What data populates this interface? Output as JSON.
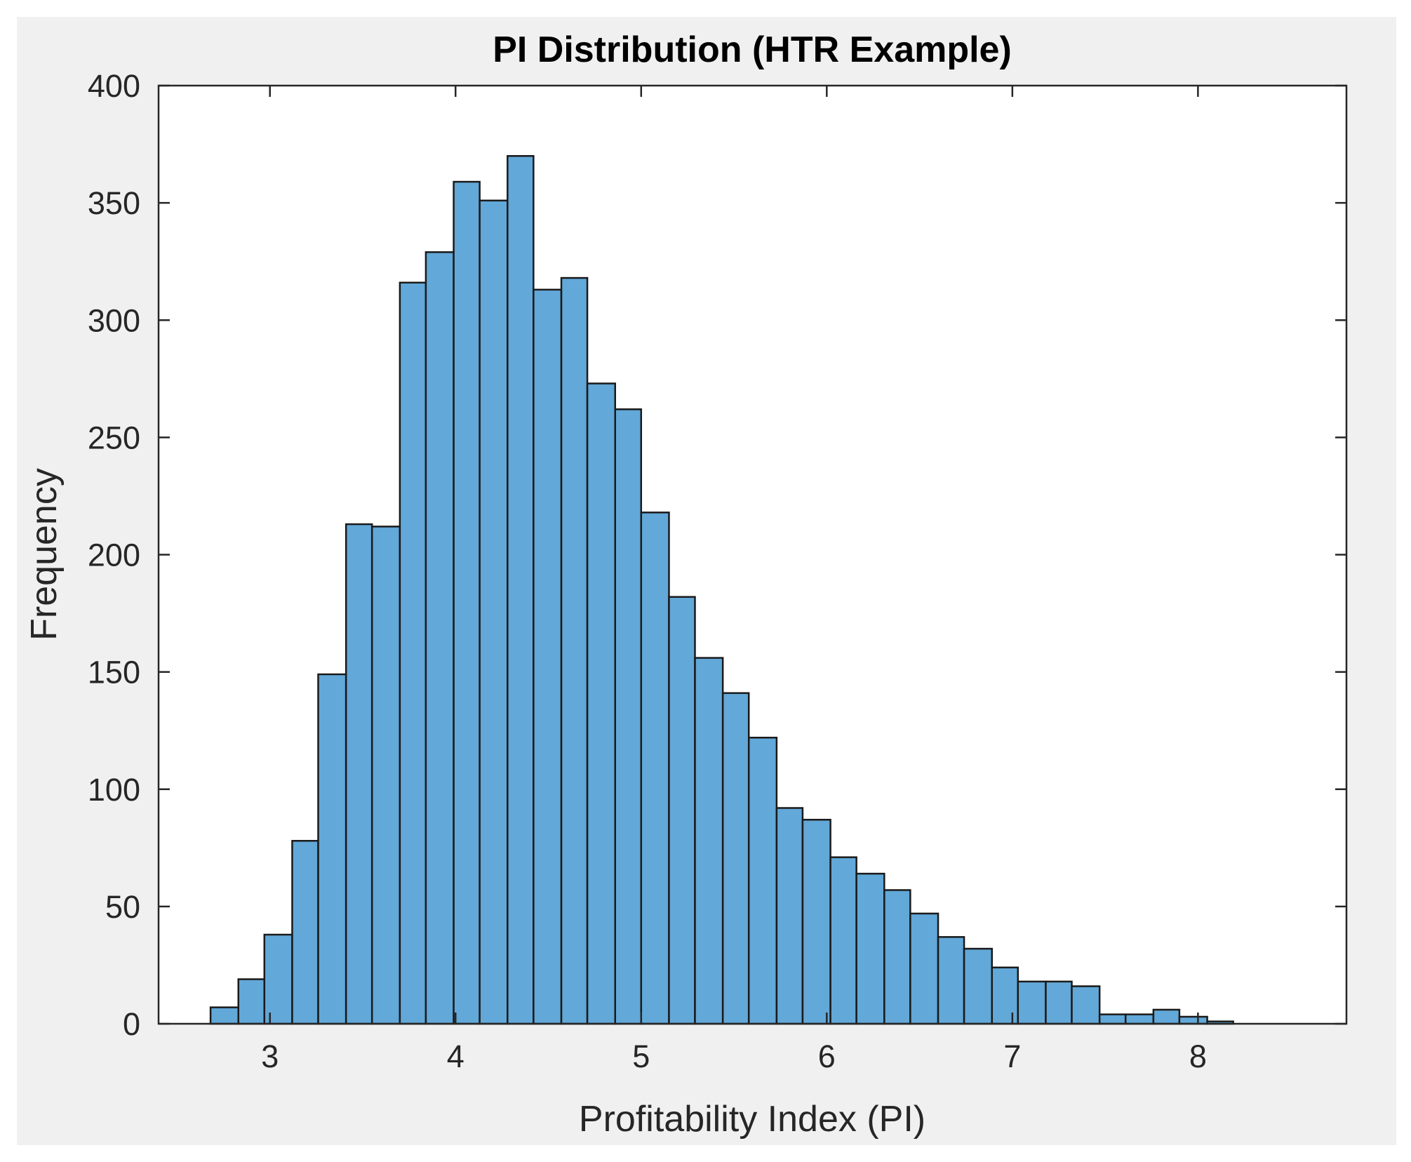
{
  "chart_data": {
    "type": "bar",
    "title": "PI Distribution (HTR Example)",
    "xlabel": "Profitability Index (PI)",
    "ylabel": "Frequency",
    "xlim": [
      2.4,
      8.8
    ],
    "ylim": [
      0,
      400
    ],
    "x_ticks": [
      3,
      4,
      5,
      6,
      7,
      8
    ],
    "y_ticks": [
      0,
      50,
      100,
      150,
      200,
      250,
      300,
      350,
      400
    ],
    "grid": false,
    "legend": "none",
    "bin_edges": [
      2.68,
      2.83,
      2.97,
      3.12,
      3.26,
      3.41,
      3.55,
      3.7,
      3.84,
      3.99,
      4.13,
      4.28,
      4.42,
      4.57,
      4.71,
      4.86,
      5.0,
      5.15,
      5.29,
      5.44,
      5.58,
      5.73,
      5.87,
      6.02,
      6.16,
      6.31,
      6.45,
      6.6,
      6.74,
      6.89,
      7.03,
      7.18,
      7.32,
      7.47,
      7.61,
      7.76,
      7.9,
      8.05,
      8.19,
      8.34
    ],
    "values": [
      7,
      19,
      38,
      78,
      149,
      213,
      212,
      316,
      329,
      359,
      351,
      370,
      313,
      318,
      273,
      262,
      218,
      182,
      156,
      141,
      122,
      92,
      87,
      71,
      64,
      57,
      47,
      37,
      32,
      24,
      18,
      18,
      16,
      4,
      4,
      6,
      3,
      1,
      0
    ],
    "colors": {
      "bar_fill": "#62a8d8",
      "bar_edge": "#1a1a1a",
      "figure_bg": "#f0f0f0",
      "axes_bg": "#ffffff"
    }
  }
}
